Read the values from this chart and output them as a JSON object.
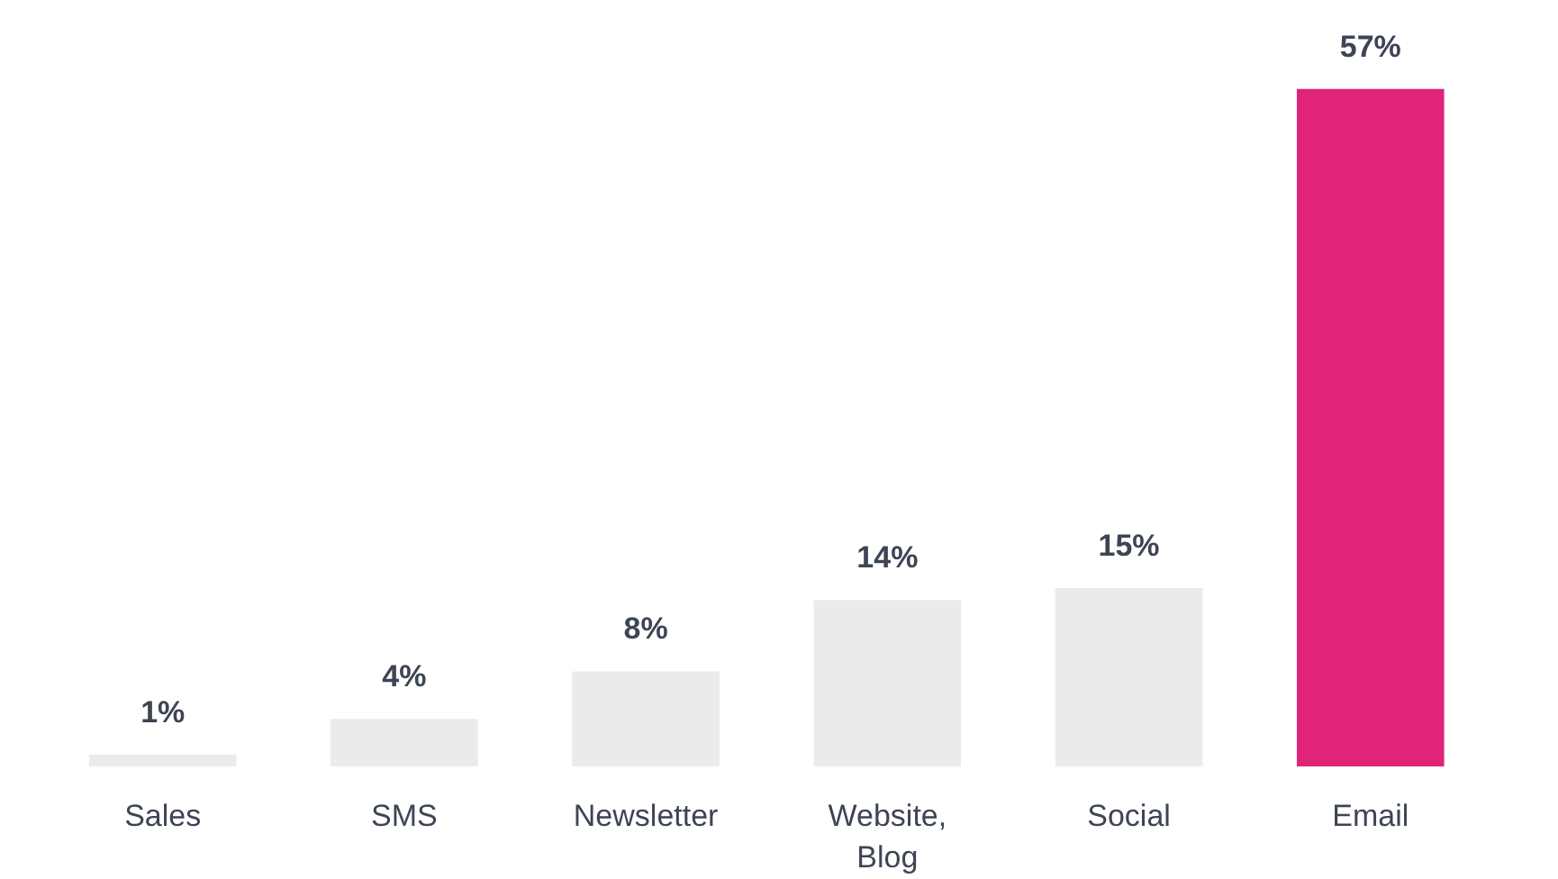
{
  "chart_data": {
    "type": "bar",
    "categories": [
      "Sales",
      "SMS",
      "Newsletter",
      "Website,\nBlog",
      "Social",
      "Email"
    ],
    "values": [
      1,
      4,
      8,
      14,
      15,
      57
    ],
    "colors": [
      "#e9ebed",
      "#e9ebed",
      "#e9ebed",
      "#e9ebed",
      "#e9ebed",
      "#e0247a"
    ],
    "value_labels": [
      "1%",
      "4%",
      "8%",
      "14%",
      "15%",
      "57%"
    ],
    "grid": false
  }
}
